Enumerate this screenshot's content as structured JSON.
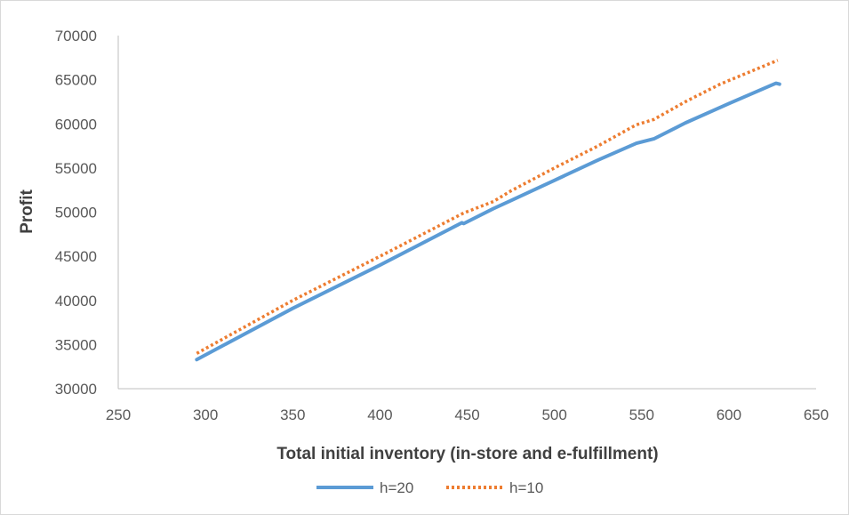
{
  "chart_data": {
    "type": "line",
    "title": "",
    "xlabel": "Total initial inventory (in-store and e-fulfillment)",
    "ylabel": "Profit",
    "xlim": [
      250,
      650
    ],
    "ylim": [
      30000,
      70000
    ],
    "x_ticks": [
      250,
      300,
      350,
      400,
      450,
      500,
      550,
      600,
      650
    ],
    "y_ticks": [
      30000,
      35000,
      40000,
      45000,
      50000,
      55000,
      60000,
      65000,
      70000
    ],
    "grid": false,
    "legend_position": "bottom",
    "series": [
      {
        "name": "h=20",
        "color": "#5b9bd5",
        "style": "solid",
        "points": [
          [
            295,
            33300
          ],
          [
            350,
            39100
          ],
          [
            400,
            44000
          ],
          [
            447,
            48800
          ],
          [
            448,
            48700
          ],
          [
            465,
            50400
          ],
          [
            475,
            51300
          ],
          [
            500,
            53600
          ],
          [
            525,
            55900
          ],
          [
            547,
            57800
          ],
          [
            557,
            58300
          ],
          [
            575,
            60100
          ],
          [
            600,
            62300
          ],
          [
            627,
            64600
          ],
          [
            629,
            64500
          ]
        ]
      },
      {
        "name": "h=10",
        "color": "#ed7d31",
        "style": "dotted",
        "points": [
          [
            295,
            34000
          ],
          [
            350,
            40000
          ],
          [
            400,
            45000
          ],
          [
            448,
            49900
          ],
          [
            465,
            51200
          ],
          [
            475,
            52400
          ],
          [
            500,
            55000
          ],
          [
            525,
            57500
          ],
          [
            547,
            59900
          ],
          [
            557,
            60500
          ],
          [
            575,
            62500
          ],
          [
            595,
            64500
          ],
          [
            628,
            67200
          ]
        ]
      }
    ]
  }
}
